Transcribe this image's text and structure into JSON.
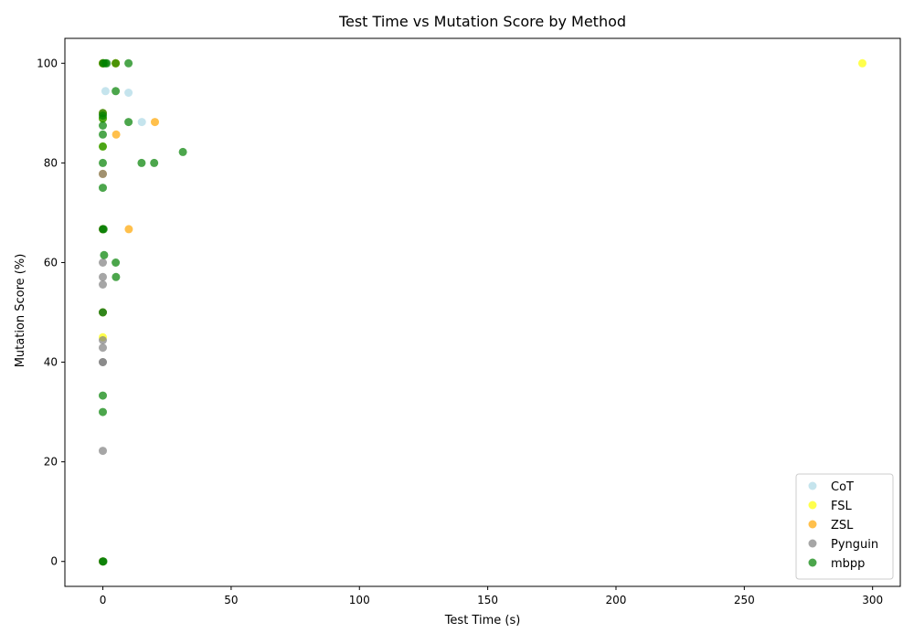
{
  "chart_data": {
    "type": "scatter",
    "title": "Test Time vs Mutation Score by Method",
    "xlabel": "Test Time (s)",
    "ylabel": "Mutation Score (%)",
    "xlim": [
      -14.8,
      310.8
    ],
    "ylim": [
      -5,
      105
    ],
    "xticks": [
      0,
      50,
      100,
      150,
      200,
      250,
      300
    ],
    "yticks": [
      0,
      20,
      40,
      60,
      80,
      100
    ],
    "grid": false,
    "legend_position": "lower-right",
    "series": [
      {
        "name": "CoT",
        "color": "#add8e6",
        "points": [
          [
            0,
            100
          ],
          [
            0.2,
            100
          ],
          [
            1,
            94.4
          ],
          [
            10,
            94.1
          ],
          [
            15.2,
            88.2
          ],
          [
            0,
            89.5
          ],
          [
            0,
            66.7
          ],
          [
            0,
            0
          ],
          [
            0,
            50
          ],
          [
            0,
            77.8
          ]
        ]
      },
      {
        "name": "FSL",
        "color": "#ffff00",
        "points": [
          [
            296,
            100
          ],
          [
            0,
            100
          ],
          [
            5,
            100
          ],
          [
            0,
            66.7
          ],
          [
            0,
            45
          ],
          [
            0,
            0
          ],
          [
            0,
            83.3
          ],
          [
            0,
            88.9
          ],
          [
            0,
            50
          ]
        ]
      },
      {
        "name": "ZSL",
        "color": "#ffa500",
        "points": [
          [
            0,
            100
          ],
          [
            5,
            100
          ],
          [
            20.3,
            88.2
          ],
          [
            5.2,
            85.7
          ],
          [
            10.1,
            66.7
          ],
          [
            0,
            77.8
          ],
          [
            0,
            0
          ],
          [
            0,
            66.7
          ],
          [
            0,
            50
          ],
          [
            0,
            90
          ]
        ]
      },
      {
        "name": "Pynguin",
        "color": "#808080",
        "points": [
          [
            0,
            60
          ],
          [
            0,
            57.1
          ],
          [
            0,
            55.6
          ],
          [
            0,
            44.4
          ],
          [
            0,
            42.9
          ],
          [
            0,
            40
          ],
          [
            0,
            22.2
          ],
          [
            0,
            0
          ],
          [
            0,
            77.8
          ],
          [
            0,
            66.7
          ],
          [
            0,
            50
          ],
          [
            0,
            40
          ]
        ]
      },
      {
        "name": "mbpp",
        "color": "#008000",
        "points": [
          [
            0,
            100
          ],
          [
            0.3,
            100
          ],
          [
            1,
            100
          ],
          [
            1.5,
            100
          ],
          [
            5,
            100
          ],
          [
            10,
            100
          ],
          [
            5,
            94.4
          ],
          [
            0,
            90
          ],
          [
            0,
            89.5
          ],
          [
            0,
            88.9
          ],
          [
            10,
            88.2
          ],
          [
            0,
            87.5
          ],
          [
            0,
            85.7
          ],
          [
            0,
            83.3
          ],
          [
            31.2,
            82.2
          ],
          [
            15.1,
            80
          ],
          [
            20,
            80
          ],
          [
            0,
            80
          ],
          [
            0,
            75
          ],
          [
            0,
            66.7
          ],
          [
            0.3,
            66.7
          ],
          [
            0.5,
            61.5
          ],
          [
            5,
            60
          ],
          [
            5.1,
            57.1
          ],
          [
            0,
            50
          ],
          [
            0,
            33.3
          ],
          [
            0,
            30
          ],
          [
            0,
            0
          ],
          [
            0.2,
            0
          ]
        ]
      }
    ]
  }
}
